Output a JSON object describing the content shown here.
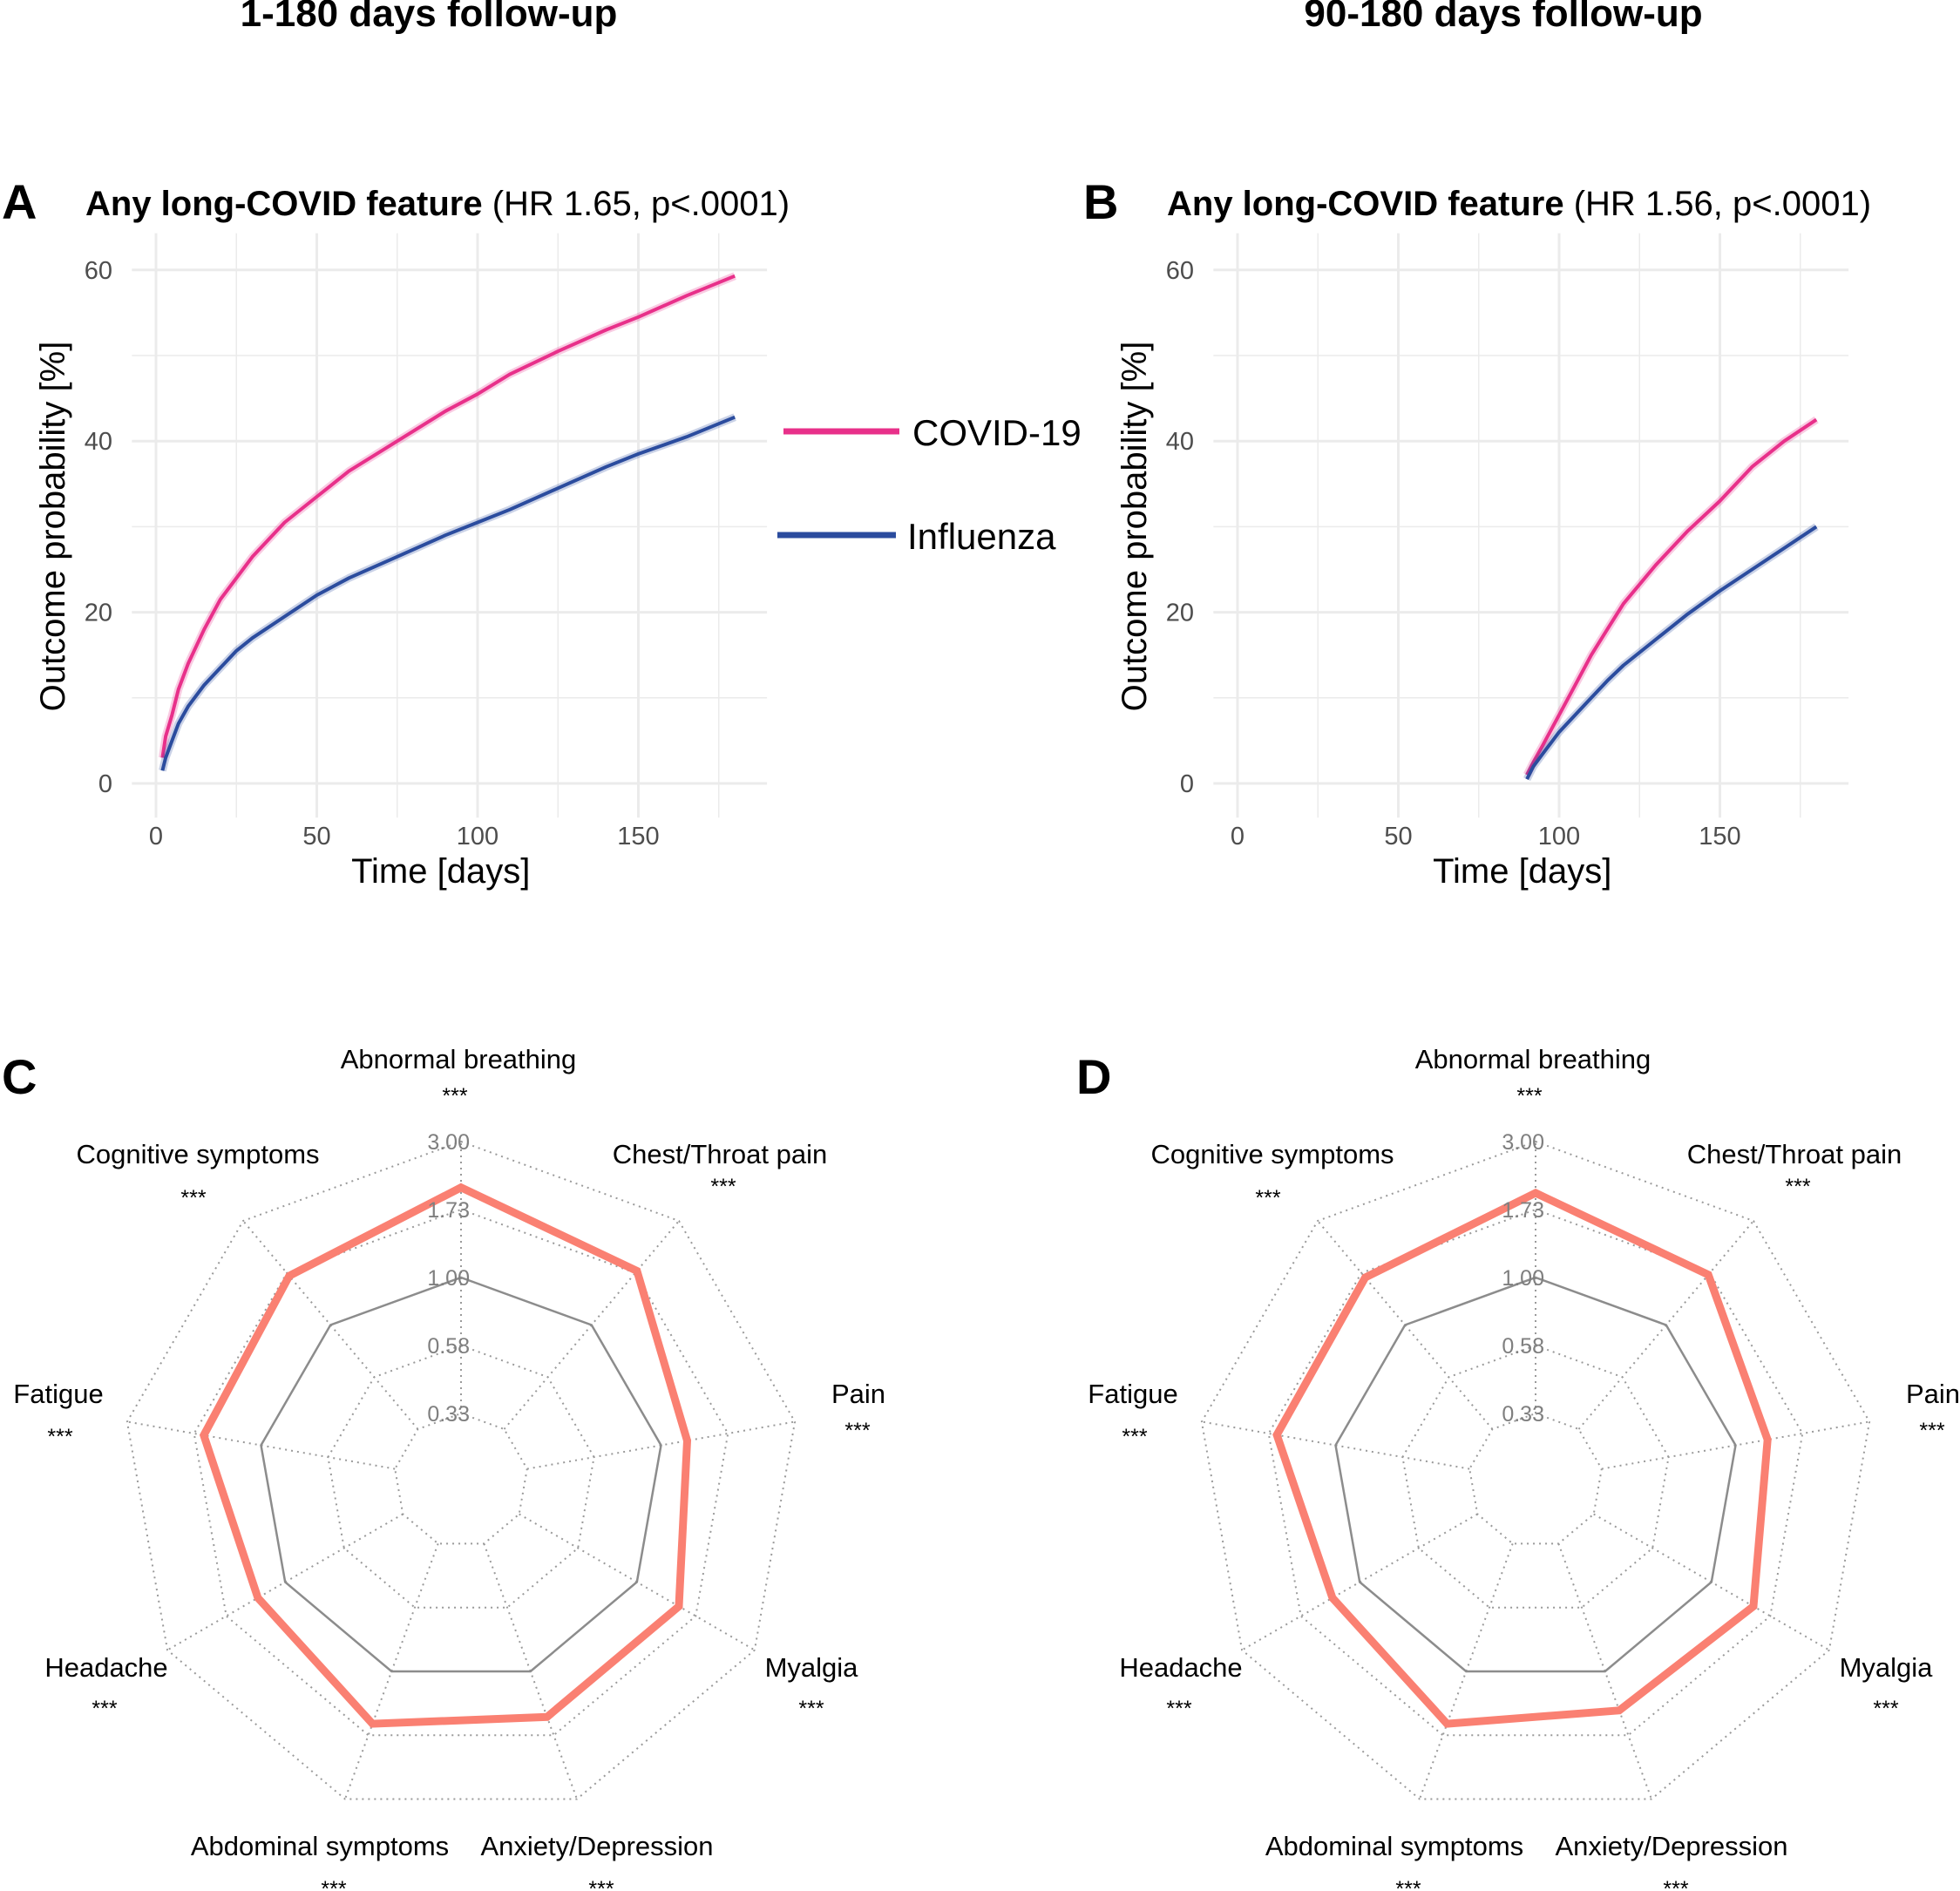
{
  "column_titles": [
    "1-180 days follow-up",
    "90-180 days follow-up"
  ],
  "legend": {
    "items": [
      {
        "label": "COVID-19",
        "color": "#e8308a"
      },
      {
        "label": "Influenza",
        "color": "#2b4c9e"
      }
    ]
  },
  "chart_data": [
    {
      "type": "line",
      "panel_label": "A",
      "title_bold": "Any long-COVID feature",
      "title_rest": " (HR 1.65, p<.0001)",
      "xlabel": "Time [days]",
      "ylabel": "Outcome probability [%]",
      "xticks": [
        "0",
        "50",
        "100",
        "150"
      ],
      "yticks": [
        "0",
        "20",
        "40",
        "60"
      ],
      "xlim": [
        -7.5,
        190
      ],
      "ylim": [
        -4,
        64.3
      ],
      "grid": true,
      "series": [
        {
          "name": "COVID-19",
          "color": "#e8308a",
          "x": [
            2,
            3,
            5,
            7,
            10,
            15,
            20,
            25,
            30,
            40,
            50,
            60,
            75,
            90,
            100,
            110,
            125,
            140,
            150,
            165,
            180
          ],
          "y": [
            3,
            5.5,
            8,
            11,
            14,
            18,
            21.5,
            24,
            26.5,
            30.5,
            33.5,
            36.5,
            40,
            43.5,
            45.5,
            47.8,
            50.5,
            53,
            54.5,
            57,
            59.3
          ]
        },
        {
          "name": "Influenza",
          "color": "#2b4c9e",
          "x": [
            2,
            3,
            5,
            7,
            10,
            15,
            20,
            25,
            30,
            40,
            50,
            60,
            75,
            90,
            100,
            110,
            125,
            140,
            150,
            165,
            180
          ],
          "y": [
            1.5,
            3,
            5,
            7,
            9,
            11.5,
            13.5,
            15.5,
            17,
            19.5,
            22,
            24,
            26.5,
            29,
            30.5,
            32,
            34.5,
            37,
            38.5,
            40.5,
            42.8
          ]
        }
      ]
    },
    {
      "type": "line",
      "panel_label": "B",
      "title_bold": "Any long-COVID feature",
      "title_rest": " (HR 1.56, p<.0001)",
      "xlabel": "Time [days]",
      "ylabel": "Outcome probability [%]",
      "xticks": [
        "0",
        "50",
        "100",
        "150"
      ],
      "yticks": [
        "0",
        "20",
        "40",
        "60"
      ],
      "xlim": [
        -7.5,
        190
      ],
      "ylim": [
        -4,
        64.3
      ],
      "grid": true,
      "series": [
        {
          "name": "COVID-19",
          "color": "#e8308a",
          "x": [
            90,
            92,
            95,
            100,
            105,
            110,
            115,
            120,
            130,
            140,
            150,
            160,
            170,
            180
          ],
          "y": [
            1,
            2.5,
            4.5,
            8,
            11.5,
            15,
            18,
            21,
            25.5,
            29.5,
            33,
            37,
            40,
            42.5
          ]
        },
        {
          "name": "Influenza",
          "color": "#2b4c9e",
          "x": [
            90,
            92,
            95,
            100,
            105,
            110,
            115,
            120,
            130,
            140,
            150,
            160,
            170,
            180
          ],
          "y": [
            0.5,
            2,
            3.5,
            6,
            8,
            10,
            12,
            13.8,
            16.8,
            19.8,
            22.5,
            25,
            27.5,
            30
          ]
        }
      ]
    },
    {
      "type": "radar",
      "panel_label": "C",
      "axes": [
        "Abnormal breathing",
        "Chest/Throat pain",
        "Pain",
        "Myalgia",
        "Anxiety/Depression",
        "Abdominal symptoms",
        "Headache",
        "Fatigue",
        "Cognitive symptoms"
      ],
      "significance": [
        "***",
        "***",
        "***",
        "***",
        "***",
        "***",
        "***",
        "***",
        "***"
      ],
      "scale_labels": [
        "0.33",
        "0.58",
        "1.00",
        "1.73",
        "3.00"
      ],
      "scale": "log",
      "reference_value": 1.0,
      "line_color": "#fa8072",
      "values": [
        2.07,
        1.77,
        1.24,
        1.48,
        1.48,
        1.57,
        1.29,
        1.6,
        1.68
      ]
    },
    {
      "type": "radar",
      "panel_label": "D",
      "axes": [
        "Abnormal breathing",
        "Chest/Throat pain",
        "Pain",
        "Myalgia",
        "Anxiety/Depression",
        "Abdominal symptoms",
        "Headache",
        "Fatigue",
        "Cognitive symptoms"
      ],
      "significance": [
        "***",
        "***",
        "***",
        "***",
        "***",
        "***",
        "***",
        "***",
        "***"
      ],
      "scale_labels": [
        "0.33",
        "0.58",
        "1.00",
        "1.73",
        "3.00"
      ],
      "scale": "log",
      "reference_value": 1.0,
      "line_color": "#fa8072",
      "values": [
        1.98,
        1.7,
        1.3,
        1.48,
        1.4,
        1.57,
        1.29,
        1.62,
        1.65
      ]
    }
  ]
}
